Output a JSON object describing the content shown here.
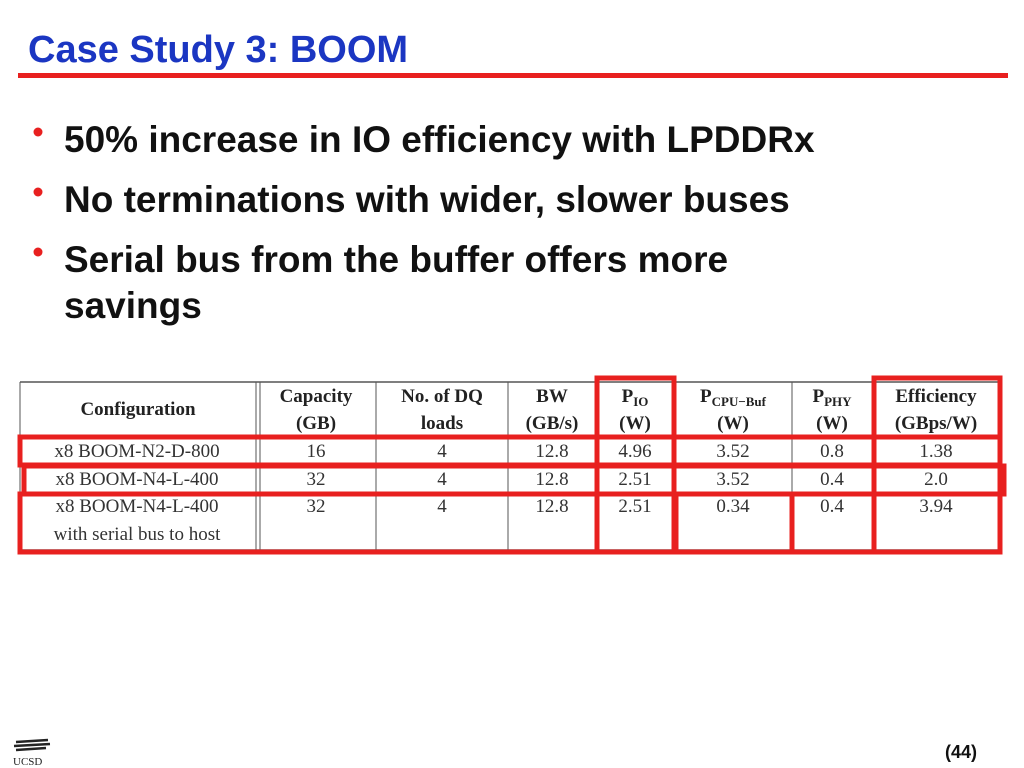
{
  "title": "Case Study 3: BOOM",
  "bullets": [
    {
      "lines": [
        "50% increase in IO efficiency with LPDDRx"
      ]
    },
    {
      "lines": [
        "No terminations with wider, slower buses"
      ]
    },
    {
      "lines": [
        "Serial bus from the buffer offers more",
        "savings"
      ]
    }
  ],
  "table": {
    "header": [
      {
        "lines": [
          "Configuration"
        ]
      },
      {
        "lines": [
          "Capacity",
          "(GB)"
        ]
      },
      {
        "lines": [
          "No. of DQ",
          "loads"
        ]
      },
      {
        "lines": [
          "BW",
          "(GB/s)"
        ]
      },
      {
        "lines": [
          "P",
          "(W)"
        ],
        "sub": "IO"
      },
      {
        "lines": [
          "P",
          "(W)"
        ],
        "sub": "CPU−Buf"
      },
      {
        "lines": [
          "P",
          "(W)"
        ],
        "sub": "PHY"
      },
      {
        "lines": [
          "Efficiency",
          "(GBps/W)"
        ]
      }
    ],
    "rows": [
      [
        [
          "x8 BOOM-N2-D-800"
        ],
        "16",
        "4",
        "12.8",
        "4.96",
        "3.52",
        "0.8",
        "1.38"
      ],
      [
        [
          "x8 BOOM-N4-L-400"
        ],
        "32",
        "4",
        "12.8",
        "2.51",
        "3.52",
        "0.4",
        "2.0"
      ],
      [
        [
          "x8 BOOM-N4-L-400",
          "with serial bus to host"
        ],
        "32",
        "4",
        "12.8",
        "2.51",
        "0.34",
        "0.4",
        "3.94"
      ]
    ]
  },
  "footer": {
    "logo": "UCSD",
    "page": "(44)"
  }
}
